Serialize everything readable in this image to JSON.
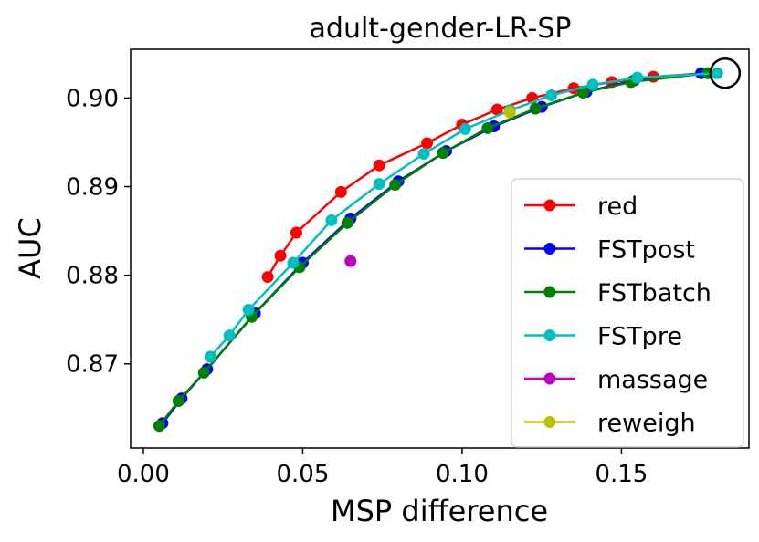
{
  "chart_data": {
    "type": "line",
    "title": "adult-gender-LR-SP",
    "xlabel": "MSP difference",
    "ylabel": "AUC",
    "xlim": [
      -0.004,
      0.19
    ],
    "ylim": [
      0.8605,
      0.9055
    ],
    "xticks": [
      0.0,
      0.05,
      0.1,
      0.15
    ],
    "xtick_labels": [
      "0.00",
      "0.05",
      "0.10",
      "0.15"
    ],
    "yticks": [
      0.87,
      0.88,
      0.89,
      0.9
    ],
    "ytick_labels": [
      "0.87",
      "0.88",
      "0.89",
      "0.90"
    ],
    "legend_position": "lower-right",
    "series": [
      {
        "name": "red",
        "color": "#ff0000",
        "x": [
          0.039,
          0.043,
          0.048,
          0.062,
          0.074,
          0.089,
          0.1,
          0.111,
          0.122,
          0.135,
          0.147,
          0.16,
          0.177
        ],
        "y": [
          0.8798,
          0.8822,
          0.8848,
          0.8894,
          0.8924,
          0.8949,
          0.897,
          0.8987,
          0.9,
          0.9011,
          0.9018,
          0.9024,
          0.9028
        ]
      },
      {
        "name": "FSTpost",
        "color": "#0000ff",
        "x": [
          0.006,
          0.012,
          0.02,
          0.035,
          0.05,
          0.065,
          0.08,
          0.095,
          0.11,
          0.125,
          0.139,
          0.154,
          0.175
        ],
        "y": [
          0.8633,
          0.8661,
          0.8694,
          0.8757,
          0.8814,
          0.8864,
          0.8906,
          0.894,
          0.8968,
          0.899,
          0.9007,
          0.902,
          0.9028
        ]
      },
      {
        "name": "FSTbatch",
        "color": "#008000",
        "x": [
          0.005,
          0.011,
          0.019,
          0.034,
          0.049,
          0.064,
          0.079,
          0.094,
          0.108,
          0.123,
          0.138,
          0.153,
          0.177
        ],
        "y": [
          0.863,
          0.8658,
          0.869,
          0.8753,
          0.8809,
          0.8859,
          0.8902,
          0.8938,
          0.8966,
          0.8988,
          0.9006,
          0.9018,
          0.9028
        ]
      },
      {
        "name": "FSTpre",
        "color": "#00bfbf",
        "x": [
          0.021,
          0.027,
          0.033,
          0.047,
          0.059,
          0.074,
          0.088,
          0.101,
          0.115,
          0.128,
          0.141,
          0.155,
          0.18
        ],
        "y": [
          0.8708,
          0.8732,
          0.8761,
          0.8814,
          0.8862,
          0.8903,
          0.8937,
          0.8965,
          0.8986,
          0.9003,
          0.9015,
          0.9023,
          0.9028
        ]
      },
      {
        "name": "massage",
        "color": "#bf00bf",
        "x": [
          0.065
        ],
        "y": [
          0.8816
        ]
      },
      {
        "name": "reweigh",
        "color": "#bfbf00",
        "x": [
          0.115
        ],
        "y": [
          0.8984
        ]
      }
    ],
    "annotations": [
      {
        "type": "circle-marker",
        "x": 0.1825,
        "y": 0.9028
      }
    ]
  }
}
